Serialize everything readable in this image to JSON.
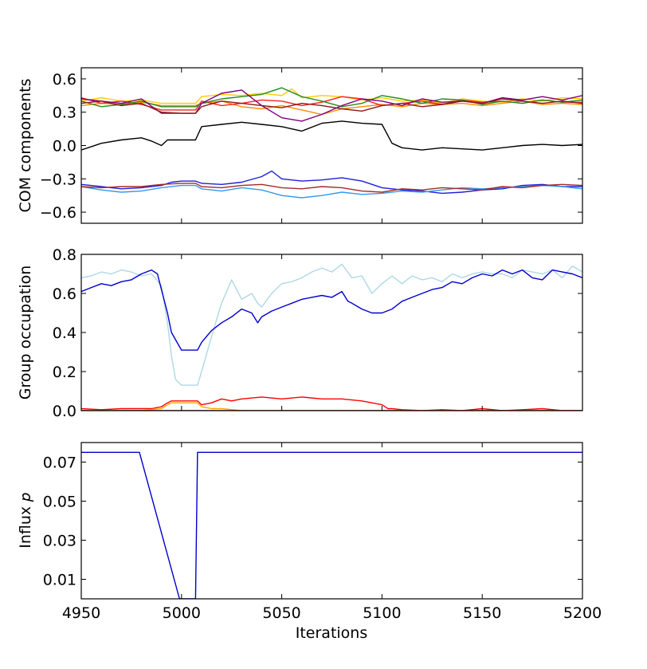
{
  "x_tick_labels": [
    "4950",
    "5000",
    "5050",
    "5100",
    "5150",
    "5200"
  ],
  "xlabel": "Iterations",
  "chart_data": [
    {
      "type": "line",
      "ylabel": "COM components",
      "xlim": [
        4950,
        5200
      ],
      "ylim": [
        -0.7,
        0.7
      ],
      "yticks": [
        -0.6,
        -0.3,
        0.0,
        0.3,
        0.6
      ],
      "ytick_labels": [
        "−0.6",
        "−0.3",
        "0.0",
        "0.3",
        "0.6"
      ],
      "show_x_tick_labels": false,
      "series": [
        {
          "color": "#1e1edc",
          "x": [
            4950,
            4960,
            4970,
            4980,
            4990,
            4995,
            5000,
            5007,
            5010,
            5020,
            5030,
            5040,
            5045,
            5050,
            5060,
            5070,
            5080,
            5090,
            5100,
            5110,
            5120,
            5130,
            5140,
            5150,
            5160,
            5170,
            5180,
            5190,
            5200
          ],
          "y": [
            -0.35,
            -0.37,
            -0.39,
            -0.38,
            -0.36,
            -0.33,
            -0.32,
            -0.32,
            -0.34,
            -0.35,
            -0.33,
            -0.28,
            -0.23,
            -0.3,
            -0.32,
            -0.31,
            -0.29,
            -0.32,
            -0.38,
            -0.4,
            -0.41,
            -0.43,
            -0.42,
            -0.4,
            -0.39,
            -0.36,
            -0.35,
            -0.37,
            -0.37
          ]
        },
        {
          "color": "#3399ee",
          "x": [
            4950,
            4960,
            4970,
            4980,
            4990,
            5000,
            5007,
            5010,
            5020,
            5030,
            5040,
            5050,
            5060,
            5070,
            5080,
            5090,
            5100,
            5110,
            5120,
            5130,
            5140,
            5150,
            5160,
            5170,
            5180,
            5190,
            5200
          ],
          "y": [
            -0.37,
            -0.4,
            -0.42,
            -0.41,
            -0.38,
            -0.36,
            -0.36,
            -0.39,
            -0.41,
            -0.38,
            -0.4,
            -0.45,
            -0.47,
            -0.45,
            -0.42,
            -0.44,
            -0.43,
            -0.41,
            -0.42,
            -0.4,
            -0.38,
            -0.39,
            -0.38,
            -0.37,
            -0.36,
            -0.37,
            -0.39
          ]
        },
        {
          "color": "#a52a2a",
          "x": [
            4950,
            4960,
            4970,
            4980,
            4990,
            5000,
            5007,
            5010,
            5020,
            5030,
            5040,
            5050,
            5060,
            5070,
            5080,
            5090,
            5100,
            5110,
            5120,
            5130,
            5140,
            5150,
            5160,
            5170,
            5180,
            5190,
            5200
          ],
          "y": [
            -0.37,
            -0.38,
            -0.37,
            -0.37,
            -0.35,
            -0.34,
            -0.34,
            -0.37,
            -0.38,
            -0.36,
            -0.35,
            -0.38,
            -0.39,
            -0.37,
            -0.38,
            -0.41,
            -0.42,
            -0.39,
            -0.4,
            -0.38,
            -0.39,
            -0.4,
            -0.37,
            -0.38,
            -0.36,
            -0.35,
            -0.36
          ]
        },
        {
          "color": "#000000",
          "x": [
            4950,
            4955,
            4960,
            4970,
            4980,
            4985,
            4990,
            4993,
            5000,
            5007,
            5010,
            5020,
            5030,
            5040,
            5050,
            5060,
            5070,
            5080,
            5090,
            5100,
            5105,
            5110,
            5120,
            5130,
            5140,
            5150,
            5160,
            5170,
            5180,
            5190,
            5200
          ],
          "y": [
            -0.04,
            -0.01,
            0.02,
            0.05,
            0.07,
            0.04,
            0.0,
            0.05,
            0.05,
            0.05,
            0.17,
            0.19,
            0.21,
            0.19,
            0.17,
            0.13,
            0.2,
            0.22,
            0.2,
            0.19,
            0.02,
            -0.02,
            -0.04,
            -0.02,
            -0.03,
            -0.04,
            -0.02,
            0.0,
            0.01,
            0.0,
            0.01
          ]
        },
        {
          "color": "#ffcc00",
          "x": [
            4950,
            4960,
            4970,
            4980,
            4990,
            5000,
            5007,
            5010,
            5020,
            5030,
            5040,
            5050,
            5055,
            5060,
            5070,
            5080,
            5090,
            5100,
            5110,
            5120,
            5130,
            5140,
            5150,
            5160,
            5170,
            5180,
            5190,
            5200
          ],
          "y": [
            0.4,
            0.43,
            0.4,
            0.41,
            0.38,
            0.38,
            0.38,
            0.44,
            0.46,
            0.45,
            0.47,
            0.45,
            0.51,
            0.43,
            0.45,
            0.44,
            0.41,
            0.43,
            0.4,
            0.41,
            0.38,
            0.42,
            0.4,
            0.39,
            0.42,
            0.4,
            0.43,
            0.42
          ]
        },
        {
          "color": "#ff8c00",
          "x": [
            4950,
            4960,
            4970,
            4980,
            4990,
            5000,
            5007,
            5010,
            5020,
            5030,
            5040,
            5050,
            5060,
            5070,
            5080,
            5090,
            5100,
            5110,
            5120,
            5130,
            5140,
            5150,
            5160,
            5170,
            5180,
            5190,
            5200
          ],
          "y": [
            0.36,
            0.38,
            0.37,
            0.39,
            0.36,
            0.36,
            0.36,
            0.38,
            0.4,
            0.35,
            0.33,
            0.36,
            0.32,
            0.28,
            0.33,
            0.35,
            0.37,
            0.35,
            0.38,
            0.37,
            0.38,
            0.36,
            0.38,
            0.4,
            0.37,
            0.38,
            0.37
          ]
        },
        {
          "color": "#ff2020",
          "x": [
            4950,
            4960,
            4970,
            4980,
            4990,
            5000,
            5007,
            5010,
            5020,
            5030,
            5040,
            5050,
            5060,
            5070,
            5080,
            5090,
            5100,
            5110,
            5120,
            5130,
            5140,
            5150,
            5160,
            5170,
            5180,
            5190,
            5200
          ],
          "y": [
            0.43,
            0.38,
            0.4,
            0.37,
            0.32,
            0.32,
            0.32,
            0.4,
            0.36,
            0.38,
            0.41,
            0.4,
            0.36,
            0.39,
            0.44,
            0.42,
            0.36,
            0.38,
            0.4,
            0.37,
            0.41,
            0.39,
            0.4,
            0.38,
            0.41,
            0.39,
            0.39
          ]
        },
        {
          "color": "#228b22",
          "x": [
            4950,
            4960,
            4970,
            4980,
            4990,
            5000,
            5007,
            5010,
            5020,
            5030,
            5040,
            5050,
            5060,
            5070,
            5080,
            5090,
            5100,
            5110,
            5120,
            5130,
            5140,
            5150,
            5160,
            5170,
            5180,
            5190,
            5200
          ],
          "y": [
            0.4,
            0.35,
            0.37,
            0.4,
            0.35,
            0.35,
            0.35,
            0.38,
            0.42,
            0.44,
            0.46,
            0.52,
            0.44,
            0.4,
            0.35,
            0.38,
            0.45,
            0.42,
            0.38,
            0.42,
            0.41,
            0.37,
            0.4,
            0.38,
            0.41,
            0.39,
            0.41
          ]
        },
        {
          "color": "#800080",
          "x": [
            4950,
            4960,
            4970,
            4980,
            4990,
            5000,
            5007,
            5010,
            5020,
            5030,
            5040,
            5050,
            5060,
            5070,
            5080,
            5090,
            5100,
            5110,
            5120,
            5130,
            5140,
            5150,
            5160,
            5170,
            5180,
            5190,
            5200
          ],
          "y": [
            0.42,
            0.4,
            0.38,
            0.42,
            0.29,
            0.29,
            0.29,
            0.38,
            0.47,
            0.5,
            0.36,
            0.25,
            0.22,
            0.28,
            0.36,
            0.42,
            0.4,
            0.36,
            0.42,
            0.39,
            0.4,
            0.38,
            0.43,
            0.41,
            0.44,
            0.41,
            0.45
          ]
        },
        {
          "color": "#8b1a1a",
          "x": [
            4950,
            4960,
            4970,
            4980,
            4990,
            5000,
            5007,
            5010,
            5020,
            5030,
            5040,
            5050,
            5060,
            5070,
            5080,
            5090,
            5100,
            5110,
            5120,
            5130,
            5140,
            5150,
            5160,
            5170,
            5180,
            5190,
            5200
          ],
          "y": [
            0.38,
            0.4,
            0.36,
            0.38,
            0.3,
            0.29,
            0.29,
            0.35,
            0.4,
            0.38,
            0.36,
            0.34,
            0.38,
            0.36,
            0.33,
            0.31,
            0.36,
            0.38,
            0.35,
            0.37,
            0.4,
            0.38,
            0.42,
            0.4,
            0.38,
            0.4,
            0.38
          ]
        }
      ]
    },
    {
      "type": "line",
      "ylabel": "Group occupation",
      "xlim": [
        4950,
        5200
      ],
      "ylim": [
        0.0,
        0.8
      ],
      "yticks": [
        0.0,
        0.2,
        0.4,
        0.6,
        0.8
      ],
      "ytick_labels": [
        "0.0",
        "0.2",
        "0.4",
        "0.6",
        "0.8"
      ],
      "show_x_tick_labels": false,
      "series": [
        {
          "color": "#add8e6",
          "x": [
            4950,
            4955,
            4960,
            4965,
            4970,
            4975,
            4980,
            4985,
            4990,
            4993,
            4995,
            4997,
            5000,
            5005,
            5008,
            5010,
            5015,
            5020,
            5025,
            5030,
            5035,
            5038,
            5040,
            5045,
            5050,
            5055,
            5060,
            5065,
            5070,
            5075,
            5080,
            5085,
            5090,
            5095,
            5100,
            5105,
            5110,
            5115,
            5120,
            5125,
            5130,
            5135,
            5140,
            5145,
            5150,
            5155,
            5160,
            5165,
            5170,
            5175,
            5180,
            5185,
            5190,
            5195,
            5200
          ],
          "y": [
            0.68,
            0.69,
            0.71,
            0.7,
            0.72,
            0.71,
            0.69,
            0.7,
            0.64,
            0.45,
            0.28,
            0.16,
            0.13,
            0.13,
            0.13,
            0.2,
            0.38,
            0.55,
            0.67,
            0.57,
            0.6,
            0.55,
            0.53,
            0.6,
            0.65,
            0.66,
            0.68,
            0.71,
            0.73,
            0.71,
            0.75,
            0.68,
            0.69,
            0.6,
            0.65,
            0.69,
            0.65,
            0.69,
            0.67,
            0.68,
            0.66,
            0.7,
            0.68,
            0.7,
            0.71,
            0.7,
            0.7,
            0.68,
            0.72,
            0.71,
            0.7,
            0.72,
            0.68,
            0.74,
            0.71
          ]
        },
        {
          "color": "#0000cd",
          "x": [
            4950,
            4955,
            4960,
            4965,
            4970,
            4975,
            4980,
            4985,
            4988,
            4990,
            4993,
            4995,
            5000,
            5005,
            5008,
            5010,
            5015,
            5020,
            5025,
            5030,
            5035,
            5038,
            5040,
            5045,
            5050,
            5055,
            5060,
            5065,
            5070,
            5075,
            5080,
            5083,
            5085,
            5090,
            5095,
            5100,
            5105,
            5110,
            5115,
            5120,
            5125,
            5130,
            5135,
            5140,
            5145,
            5150,
            5155,
            5160,
            5165,
            5170,
            5175,
            5180,
            5185,
            5190,
            5195,
            5200
          ],
          "y": [
            0.61,
            0.63,
            0.65,
            0.64,
            0.66,
            0.67,
            0.7,
            0.72,
            0.7,
            0.62,
            0.5,
            0.4,
            0.31,
            0.31,
            0.31,
            0.35,
            0.41,
            0.45,
            0.48,
            0.52,
            0.5,
            0.45,
            0.48,
            0.51,
            0.53,
            0.55,
            0.57,
            0.58,
            0.59,
            0.58,
            0.61,
            0.56,
            0.55,
            0.52,
            0.5,
            0.5,
            0.52,
            0.56,
            0.58,
            0.6,
            0.62,
            0.63,
            0.66,
            0.65,
            0.68,
            0.7,
            0.69,
            0.72,
            0.7,
            0.72,
            0.68,
            0.67,
            0.72,
            0.71,
            0.7,
            0.68
          ]
        },
        {
          "color": "#ff0000",
          "x": [
            4950,
            4960,
            4970,
            4980,
            4985,
            4990,
            4993,
            4995,
            5000,
            5005,
            5008,
            5010,
            5015,
            5020,
            5025,
            5030,
            5040,
            5050,
            5060,
            5070,
            5080,
            5090,
            5095,
            5100,
            5103,
            5105,
            5110,
            5120,
            5130,
            5140,
            5150,
            5160,
            5170,
            5180,
            5190,
            5200
          ],
          "y": [
            0.01,
            0.005,
            0.01,
            0.01,
            0.01,
            0.02,
            0.04,
            0.05,
            0.05,
            0.05,
            0.05,
            0.03,
            0.04,
            0.06,
            0.05,
            0.06,
            0.07,
            0.06,
            0.07,
            0.06,
            0.06,
            0.05,
            0.04,
            0.03,
            0.01,
            0.01,
            0.005,
            0.0,
            0.005,
            0.0,
            0.01,
            0.0,
            0.005,
            0.01,
            0.0,
            0.0
          ]
        },
        {
          "color": "#ffa500",
          "x": [
            4950,
            4980,
            4990,
            4993,
            4995,
            5000,
            5008,
            5010,
            5015,
            5020,
            5030,
            5040,
            5050,
            5200
          ],
          "y": [
            0.0,
            0.0,
            0.01,
            0.03,
            0.04,
            0.04,
            0.04,
            0.02,
            0.01,
            0.01,
            0.0,
            0.0,
            0.0,
            0.0
          ]
        },
        {
          "color": "#8b0000",
          "x": [
            4950,
            5200
          ],
          "y": [
            0.0,
            0.0
          ]
        }
      ]
    },
    {
      "type": "line",
      "ylabel": "Influx 𝑝",
      "xlim": [
        4950,
        5200
      ],
      "ylim": [
        0.0,
        0.08
      ],
      "yticks": [
        0.01,
        0.03,
        0.05,
        0.07
      ],
      "ytick_labels": [
        "0.01",
        "0.03",
        "0.05",
        "0.07"
      ],
      "show_x_tick_labels": true,
      "series": [
        {
          "color": "#0000cd",
          "x": [
            4950,
            4979,
            4999,
            5001,
            5007,
            5008,
            5200
          ],
          "y": [
            0.075,
            0.075,
            0.0,
            0.0,
            0.0,
            0.075,
            0.075
          ]
        }
      ]
    }
  ]
}
